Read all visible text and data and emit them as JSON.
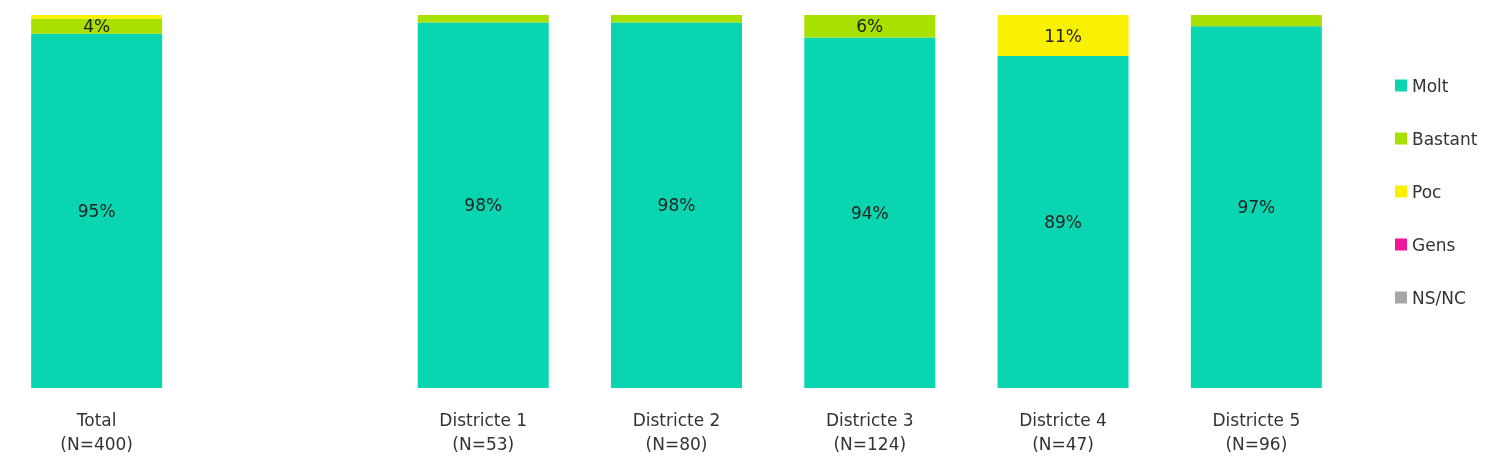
{
  "chart_data": {
    "type": "bar",
    "stacked": true,
    "legend": "right",
    "ylim": [
      0,
      100
    ],
    "categories": [
      "Total\n(N=400)",
      null,
      "Districte 1\n(N=53)",
      "Districte 2\n(N=80)",
      "Districte 3\n(N=124)",
      "Districte 4\n(N=47)",
      "Districte 5\n(N=96)"
    ],
    "series": [
      {
        "name": "Molt",
        "color": "#09d6b1",
        "values": [
          95,
          null,
          98,
          98,
          94,
          89,
          97
        ],
        "value_labels": [
          "95%",
          null,
          "98%",
          "98%",
          "94%",
          "89%",
          "97%"
        ]
      },
      {
        "name": "Bastant",
        "color": "#a8e000",
        "values": [
          4,
          null,
          2,
          2,
          6,
          0,
          3
        ],
        "value_labels": [
          "4%",
          null,
          null,
          null,
          "6%",
          null,
          null
        ]
      },
      {
        "name": "Poc",
        "color": "#f9f100",
        "values": [
          1,
          null,
          0,
          0,
          0,
          11,
          0
        ],
        "value_labels": [
          null,
          null,
          null,
          null,
          null,
          "11%",
          null
        ]
      },
      {
        "name": "Gens",
        "color": "#f0169c",
        "values": [
          0,
          null,
          0,
          0,
          0,
          0,
          0
        ]
      },
      {
        "name": "NS/NC",
        "color": "#a6a6a6",
        "values": [
          0,
          null,
          0,
          0,
          0,
          0,
          0
        ]
      }
    ]
  }
}
